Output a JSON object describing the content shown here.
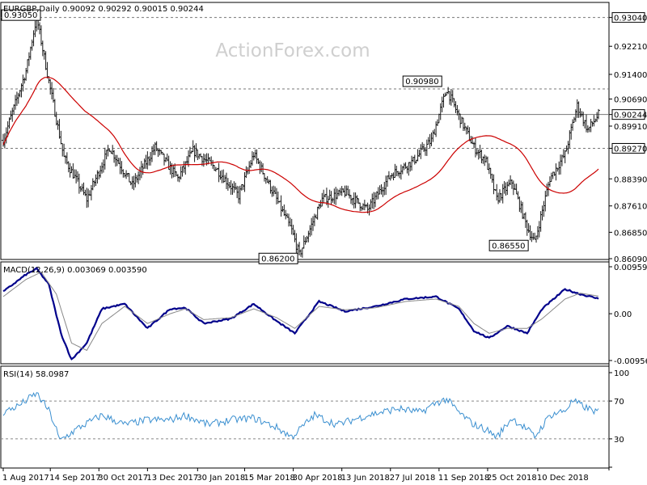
{
  "header": {
    "title": "EURGBP,Daily  0.90092 0.90292 0.90015 0.90244",
    "watermark": "ActionForex.com"
  },
  "colors": {
    "bars": "#1a1a1a",
    "ma": "#cc0000",
    "macd": "#00008b",
    "signal": "#888888",
    "rsi": "#3a8fd0",
    "grid": "#777777"
  },
  "chart_data": [
    {
      "type": "ohlc",
      "panel": "price",
      "ylim": [
        0.8609,
        0.9345
      ],
      "y_ticks": [
        "0.93040",
        "0.92210",
        "0.91400",
        "0.90690",
        "0.90244",
        "0.89910",
        "0.89270",
        "0.88390",
        "0.87610",
        "0.86850",
        "0.86090"
      ],
      "x_ticks": [
        "1 Aug 2017",
        "14 Sep 2017",
        "30 Oct 2017",
        "13 Dec 2017",
        "30 Jan 2018",
        "15 Mar 2018",
        "30 Apr 2018",
        "13 Jun 2018",
        "27 Jul 2018",
        "11 Sep 2018",
        "25 Oct 2018",
        "10 Dec 2018"
      ],
      "levels": [
        {
          "label": "0.93040",
          "value": 0.9304,
          "boxed": true,
          "dashed": true
        },
        {
          "label": "0.90980",
          "value": 0.9098,
          "boxed": true,
          "dashed": true
        },
        {
          "label": "0.90244",
          "value": 0.90244,
          "boxed": true,
          "dashed": false
        },
        {
          "label": "0.89270",
          "value": 0.8927,
          "boxed": true,
          "dashed": true
        }
      ],
      "annotations": [
        {
          "text": "0.93050",
          "value": 0.9305
        },
        {
          "text": "0.90980",
          "value": 0.9098
        },
        {
          "text": "0.86200",
          "value": 0.862
        },
        {
          "text": "0.86550",
          "value": 0.8655
        }
      ],
      "anchor_path": [
        [
          0,
          0.895
        ],
        [
          15,
          0.915
        ],
        [
          22,
          0.9305
        ],
        [
          30,
          0.912
        ],
        [
          40,
          0.89
        ],
        [
          55,
          0.878
        ],
        [
          70,
          0.893
        ],
        [
          85,
          0.882
        ],
        [
          100,
          0.893
        ],
        [
          115,
          0.884
        ],
        [
          125,
          0.892
        ],
        [
          140,
          0.887
        ],
        [
          155,
          0.879
        ],
        [
          165,
          0.891
        ],
        [
          180,
          0.878
        ],
        [
          190,
          0.869
        ],
        [
          195,
          0.862
        ],
        [
          210,
          0.878
        ],
        [
          225,
          0.88
        ],
        [
          240,
          0.875
        ],
        [
          255,
          0.885
        ],
        [
          270,
          0.889
        ],
        [
          282,
          0.895
        ],
        [
          292,
          0.9098
        ],
        [
          300,
          0.902
        ],
        [
          310,
          0.893
        ],
        [
          318,
          0.889
        ],
        [
          325,
          0.878
        ],
        [
          335,
          0.883
        ],
        [
          345,
          0.87
        ],
        [
          350,
          0.8655
        ],
        [
          360,
          0.884
        ],
        [
          370,
          0.891
        ],
        [
          378,
          0.905
        ],
        [
          385,
          0.898
        ],
        [
          392,
          0.9024
        ]
      ]
    },
    {
      "type": "line",
      "panel": "macd",
      "label": "MACD(12,26,9) 0.003069 0.003590",
      "ylim": [
        -0.009562,
        0.009593
      ],
      "y_ticks": [
        "0.009593",
        "0.00",
        "-0.009562"
      ],
      "series": [
        {
          "name": "MACD",
          "anchor_path": [
            [
              0,
              0.0045
            ],
            [
              15,
              0.008
            ],
            [
              22,
              0.0092
            ],
            [
              30,
              0.006
            ],
            [
              38,
              -0.004
            ],
            [
              45,
              -0.0094
            ],
            [
              55,
              -0.006
            ],
            [
              65,
              0.001
            ],
            [
              80,
              0.002
            ],
            [
              95,
              -0.003
            ],
            [
              110,
              0.001
            ],
            [
              120,
              0.0012
            ],
            [
              132,
              -0.002
            ],
            [
              150,
              -0.001
            ],
            [
              165,
              0.002
            ],
            [
              180,
              -0.0015
            ],
            [
              192,
              -0.004
            ],
            [
              208,
              0.0025
            ],
            [
              225,
              0.0005
            ],
            [
              245,
              0.0015
            ],
            [
              265,
              0.003
            ],
            [
              285,
              0.0035
            ],
            [
              300,
              0.001
            ],
            [
              310,
              -0.0035
            ],
            [
              320,
              -0.005
            ],
            [
              332,
              -0.0025
            ],
            [
              345,
              -0.004
            ],
            [
              355,
              0.001
            ],
            [
              370,
              0.005
            ],
            [
              380,
              0.004
            ],
            [
              392,
              0.003069
            ]
          ]
        },
        {
          "name": "Signal",
          "anchor_path": [
            [
              0,
              0.0035
            ],
            [
              15,
              0.007
            ],
            [
              25,
              0.0085
            ],
            [
              35,
              0.004
            ],
            [
              45,
              -0.006
            ],
            [
              55,
              -0.0075
            ],
            [
              65,
              -0.002
            ],
            [
              80,
              0.0015
            ],
            [
              95,
              -0.002
            ],
            [
              110,
              0.0
            ],
            [
              120,
              0.001
            ],
            [
              132,
              -0.0012
            ],
            [
              150,
              -0.0008
            ],
            [
              165,
              0.001
            ],
            [
              180,
              -0.0008
            ],
            [
              192,
              -0.003
            ],
            [
              208,
              0.0015
            ],
            [
              225,
              0.0008
            ],
            [
              245,
              0.0012
            ],
            [
              265,
              0.0025
            ],
            [
              285,
              0.003
            ],
            [
              300,
              0.0015
            ],
            [
              310,
              -0.002
            ],
            [
              320,
              -0.004
            ],
            [
              332,
              -0.003
            ],
            [
              345,
              -0.003
            ],
            [
              355,
              -0.001
            ],
            [
              370,
              0.003
            ],
            [
              380,
              0.0042
            ],
            [
              392,
              0.00359
            ]
          ]
        }
      ]
    },
    {
      "type": "line",
      "panel": "rsi",
      "label": "RSI(14) 58.0987",
      "ylim": [
        0,
        100
      ],
      "y_ticks": [
        "100",
        "70",
        "30",
        "0"
      ],
      "levels": [
        70,
        30
      ],
      "series": [
        {
          "name": "RSI",
          "anchor_path": [
            [
              0,
              58
            ],
            [
              10,
              65
            ],
            [
              22,
              78
            ],
            [
              30,
              60
            ],
            [
              35,
              40
            ],
            [
              37,
              28
            ],
            [
              50,
              42
            ],
            [
              65,
              55
            ],
            [
              80,
              45
            ],
            [
              95,
              50
            ],
            [
              110,
              50
            ],
            [
              120,
              55
            ],
            [
              135,
              45
            ],
            [
              150,
              50
            ],
            [
              165,
              52
            ],
            [
              180,
              42
            ],
            [
              190,
              32
            ],
            [
              205,
              55
            ],
            [
              220,
              45
            ],
            [
              240,
              55
            ],
            [
              260,
              62
            ],
            [
              275,
              58
            ],
            [
              285,
              68
            ],
            [
              292,
              72
            ],
            [
              300,
              58
            ],
            [
              310,
              45
            ],
            [
              318,
              40
            ],
            [
              325,
              32
            ],
            [
              335,
              52
            ],
            [
              345,
              40
            ],
            [
              350,
              32
            ],
            [
              360,
              55
            ],
            [
              370,
              60
            ],
            [
              375,
              70
            ],
            [
              385,
              62
            ],
            [
              392,
              58.1
            ]
          ]
        }
      ]
    }
  ]
}
